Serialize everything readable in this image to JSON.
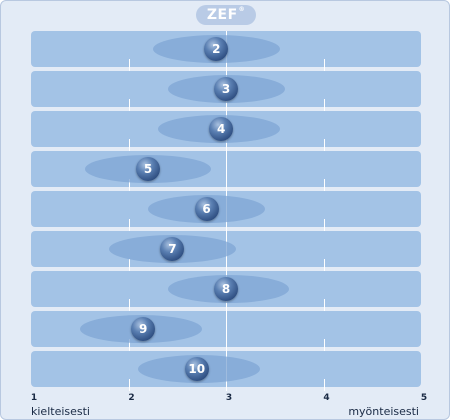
{
  "brand": {
    "name": "ZEF",
    "mark": "®"
  },
  "colors": {
    "background": "#e3ebf6",
    "row": "#a3c3e6",
    "ellipse": "#7fa6d4",
    "dot": "#3b5d91"
  },
  "chart_data": {
    "type": "scatter",
    "x_ticks": [
      "1",
      "2",
      "3",
      "4",
      "5"
    ],
    "xlim": [
      1,
      5
    ],
    "xlabel_left": "kielteisesti",
    "xlabel_right": "myönteisesti",
    "reference_line": 3,
    "grid": true,
    "points": [
      {
        "label": "2",
        "mean": 2.9,
        "spread_low": 2.25,
        "spread_high": 3.55
      },
      {
        "label": "3",
        "mean": 3.0,
        "spread_low": 2.4,
        "spread_high": 3.6
      },
      {
        "label": "4",
        "mean": 2.95,
        "spread_low": 2.3,
        "spread_high": 3.55
      },
      {
        "label": "5",
        "mean": 2.2,
        "spread_low": 1.55,
        "spread_high": 2.85
      },
      {
        "label": "6",
        "mean": 2.8,
        "spread_low": 2.2,
        "spread_high": 3.4
      },
      {
        "label": "7",
        "mean": 2.45,
        "spread_low": 1.8,
        "spread_high": 3.1
      },
      {
        "label": "8",
        "mean": 3.0,
        "spread_low": 2.4,
        "spread_high": 3.65
      },
      {
        "label": "9",
        "mean": 2.15,
        "spread_low": 1.5,
        "spread_high": 2.75
      },
      {
        "label": "10",
        "mean": 2.7,
        "spread_low": 2.1,
        "spread_high": 3.35
      }
    ]
  }
}
